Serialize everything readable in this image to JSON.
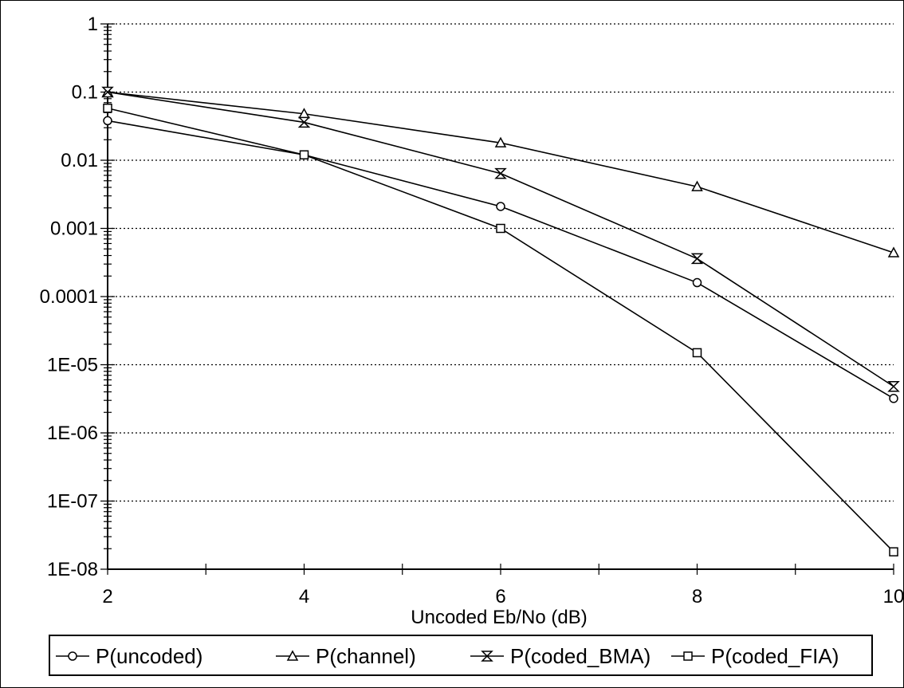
{
  "chart_data": {
    "type": "line",
    "x": [
      2,
      4,
      6,
      8,
      10
    ],
    "xlabel": "Uncoded Eb/No (dB)",
    "ylabel": "",
    "xlim": [
      2,
      10
    ],
    "ylim": [
      1e-08,
      1
    ],
    "yscale": "log",
    "x_tick_labels": [
      "2",
      "4",
      "6",
      "8",
      "10"
    ],
    "y_tick_labels": [
      "1",
      "0.1",
      "0.01",
      "0.001",
      "0.0001",
      "1E-05",
      "1E-06",
      "1E-07",
      "1E-08"
    ],
    "grid": "horizontal dotted",
    "legend_position": "bottom",
    "series": [
      {
        "name": "P(uncoded)",
        "marker": "circle",
        "values": [
          0.038,
          0.012,
          0.0021,
          0.00016,
          3.2e-06
        ]
      },
      {
        "name": "P(channel)",
        "marker": "triangle",
        "values": [
          0.1,
          0.048,
          0.018,
          0.0041,
          0.00044
        ]
      },
      {
        "name": "P(coded_BMA)",
        "marker": "hourglass",
        "values": [
          0.1,
          0.036,
          0.0064,
          0.00036,
          4.8e-06
        ]
      },
      {
        "name": "P(coded_FIA)",
        "marker": "square",
        "values": [
          0.058,
          0.012,
          0.001,
          1.5e-05,
          1.8e-08
        ]
      }
    ],
    "colors": {
      "line": "#000000",
      "grid": "#000000",
      "background": "#ffffff"
    }
  }
}
